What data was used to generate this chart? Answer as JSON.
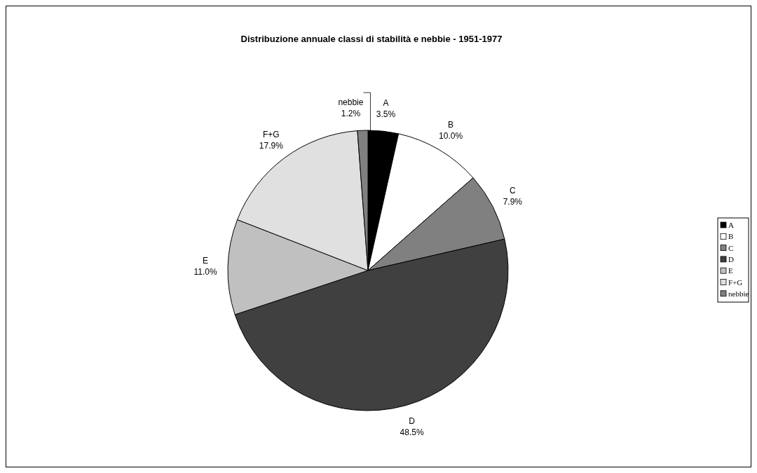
{
  "chart_data": {
    "type": "pie",
    "title": "Distribuzione annuale classi di stabilità e nebbie - 1951-1977",
    "categories": [
      "A",
      "B",
      "C",
      "D",
      "E",
      "F+G",
      "nebbie"
    ],
    "values": [
      3.5,
      10.0,
      7.9,
      48.5,
      11.0,
      17.9,
      1.2
    ],
    "value_labels": [
      "3.5%",
      "10.0%",
      "7.9%",
      "48.5%",
      "11.0%",
      "17.9%",
      "1.2%"
    ],
    "colors": [
      "#000000",
      "#ffffff",
      "#808080",
      "#404040",
      "#c0c0c0",
      "#e0e0e0",
      "#808080"
    ],
    "legend": "right"
  }
}
